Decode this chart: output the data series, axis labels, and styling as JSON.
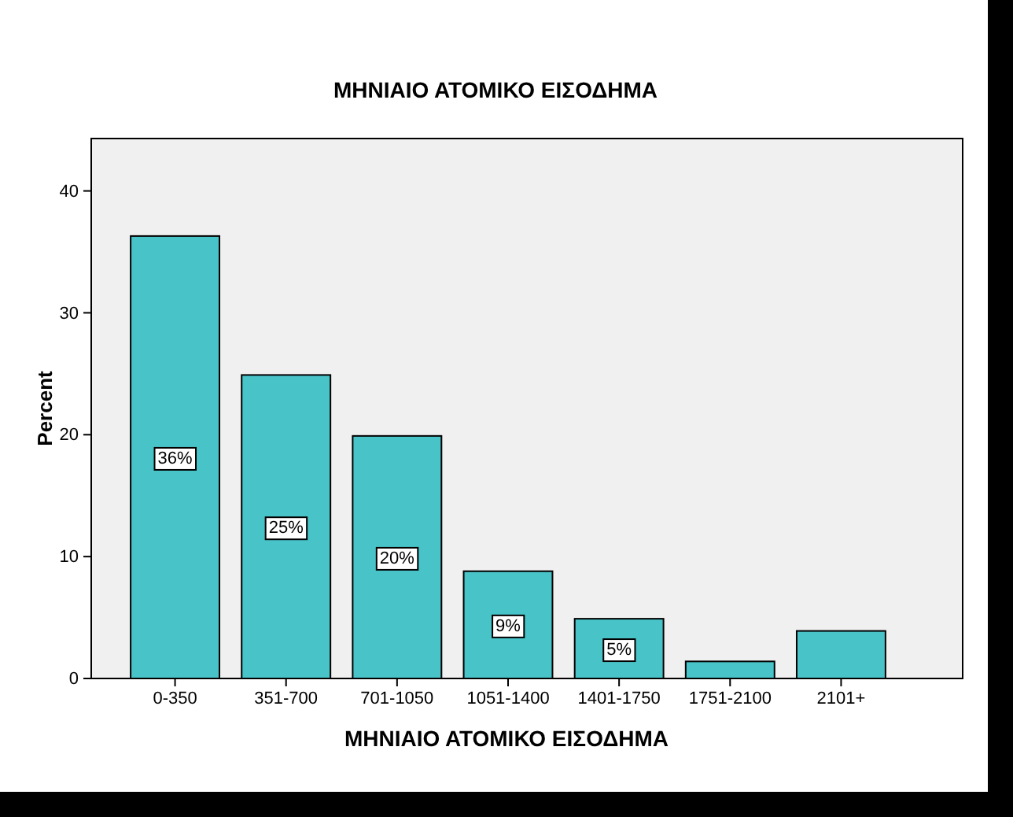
{
  "chart_data": {
    "type": "bar",
    "title": "ΜΗΝΙΑΙΟ ΑΤΟΜΙΚΟ ΕΙΣΟΔΗΜΑ",
    "xlabel": "ΜΗΝΙΑΙΟ ΑΤΟΜΙΚΟ ΕΙΣΟΔΗΜΑ",
    "ylabel": "Percent",
    "categories": [
      "0-350",
      "351-700",
      "701-1050",
      "1051-1400",
      "1401-1750",
      "1751-2100",
      "2101+"
    ],
    "values": [
      36.3,
      24.9,
      19.9,
      8.8,
      4.9,
      1.4,
      3.9
    ],
    "value_labels": [
      "36%",
      "25%",
      "20%",
      "9%",
      "5%",
      null,
      null
    ],
    "color": "#48c3c8",
    "ylim": [
      0,
      44.3
    ],
    "yticks": [
      0,
      10,
      20,
      30,
      40
    ],
    "grid": false
  }
}
